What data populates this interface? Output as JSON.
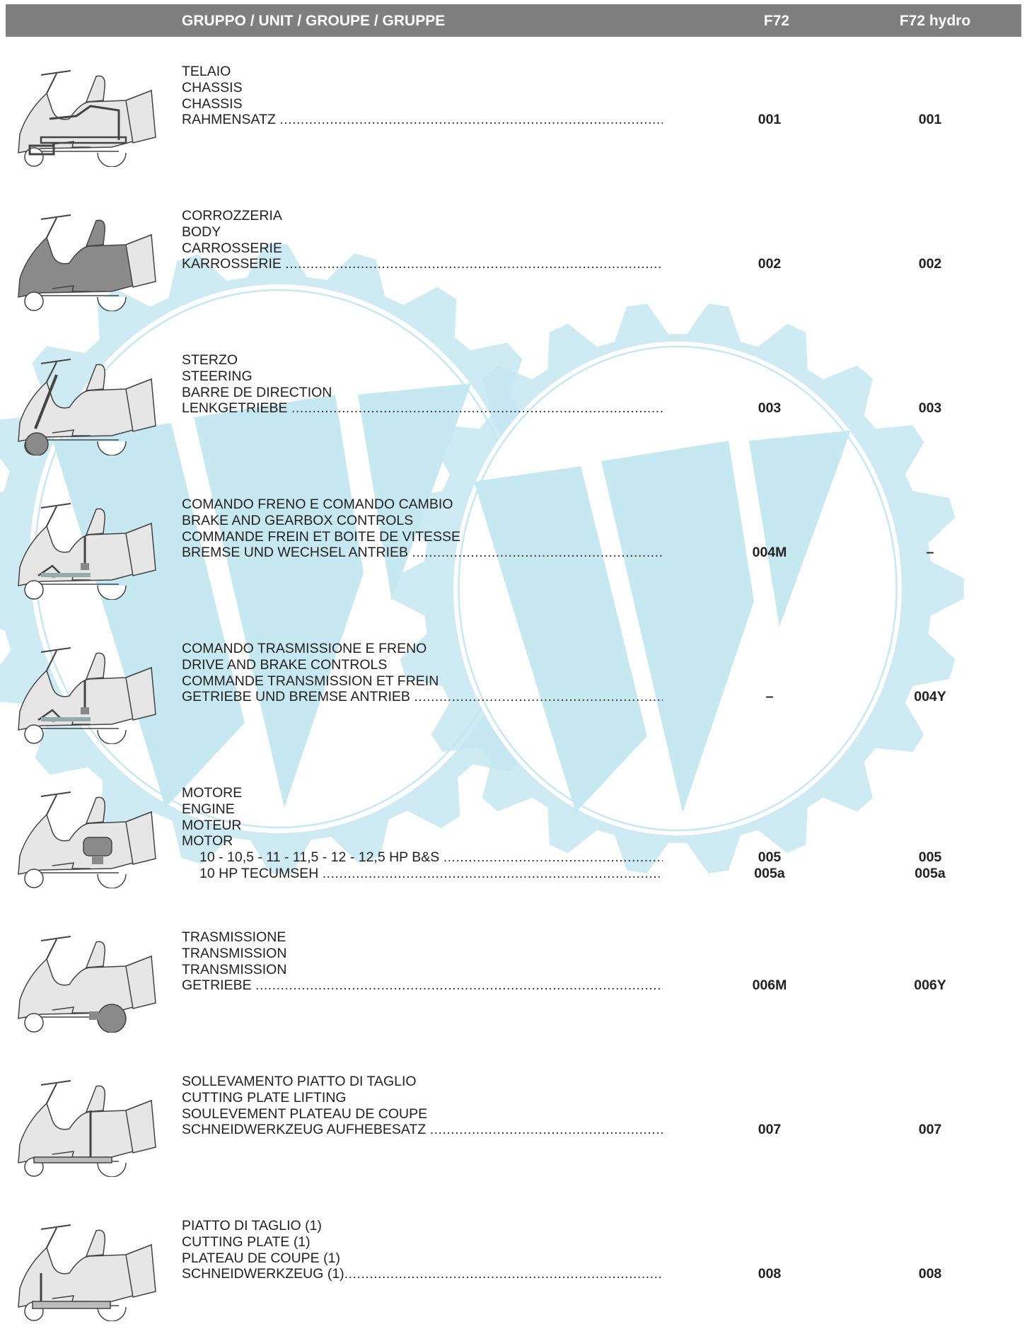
{
  "header": {
    "group": "GRUPPO  /  UNIT  /  GROUPE  /  GRUPPE",
    "col1": "F72",
    "col2": "F72 hydro"
  },
  "colors": {
    "header_bg": "#7f7f7f",
    "watermark": "#c6e8f1"
  },
  "sections": [
    {
      "icon": "mower-chassis-icon",
      "lines": [
        "TELAIO",
        "CHASSIS",
        "CHASSIS",
        "RAHMENSATZ "
      ],
      "col1": [
        "001"
      ],
      "col2": [
        "001"
      ]
    },
    {
      "icon": "mower-body-icon",
      "lines": [
        "CORROZZERIA",
        "BODY",
        "CARROSSERIE",
        "KARROSSERIE "
      ],
      "col1": [
        "002"
      ],
      "col2": [
        "002"
      ]
    },
    {
      "icon": "mower-steering-icon",
      "lines": [
        "STERZO",
        "STEERING",
        "BARRE DE DIRECTION",
        "LENKGETRIEBE "
      ],
      "col1": [
        "003"
      ],
      "col2": [
        "003"
      ]
    },
    {
      "icon": "mower-brake-gearbox-icon",
      "lines": [
        "COMANDO FRENO E COMANDO CAMBIO",
        "BRAKE AND GEARBOX CONTROLS",
        "COMMANDE FREIN ET BOITE DE VITESSE",
        "BREMSE UND WECHSEL ANTRIEB "
      ],
      "col1": [
        "004M"
      ],
      "col2": [
        "–"
      ]
    },
    {
      "icon": "mower-drive-brake-icon",
      "lines": [
        "COMANDO TRASMISSIONE E FRENO",
        "DRIVE AND BRAKE CONTROLS",
        "COMMANDE TRANSMISSION ET FREIN",
        "GETRIEBE UND BREMSE ANTRIEB "
      ],
      "col1": [
        "–"
      ],
      "col2": [
        "004Y"
      ]
    },
    {
      "icon": "mower-engine-icon",
      "lines": [
        "MOTORE",
        "ENGINE",
        "MOTEUR",
        "MOTOR"
      ],
      "sublines": [
        "10 - 10,5 - 11 - 11,5 - 12 - 12,5  HP  B&S ",
        "10  HP TECUMSEH "
      ],
      "col1": [
        "005",
        "005a"
      ],
      "col2": [
        "005",
        "005a"
      ]
    },
    {
      "icon": "mower-transmission-icon",
      "lines": [
        "TRASMISSIONE",
        "TRANSMISSION",
        "TRANSMISSION",
        "GETRIEBE "
      ],
      "col1": [
        "006M"
      ],
      "col2": [
        "006Y"
      ]
    },
    {
      "icon": "mower-plate-lifting-icon",
      "lines": [
        "SOLLEVAMENTO PIATTO DI TAGLIO",
        "CUTTING PLATE LIFTING",
        "SOULEVEMENT PLATEAU DE COUPE",
        "SCHNEIDWERKZEUG AUFHEBESATZ "
      ],
      "col1": [
        "007"
      ],
      "col2": [
        "007"
      ]
    },
    {
      "icon": "mower-cutting-plate-icon",
      "lines": [
        "PIATTO DI TAGLIO (1)",
        "CUTTING PLATE (1)",
        "PLATEAU DE COUPE (1)",
        "SCHNEIDWERKZEUG (1)"
      ],
      "col1": [
        "008"
      ],
      "col2": [
        "008"
      ]
    }
  ]
}
